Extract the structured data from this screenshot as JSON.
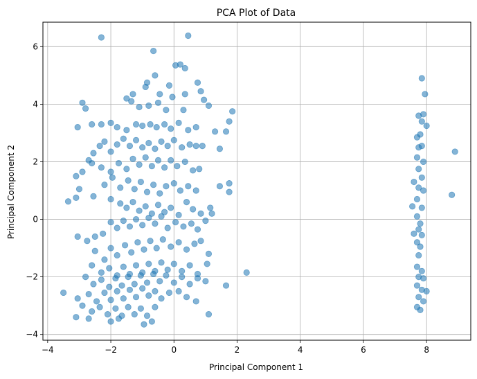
{
  "chart_data": {
    "type": "scatter",
    "title": "PCA Plot of Data",
    "xlabel": "Principal Component 1",
    "ylabel": "Principal Component 2",
    "xlim": [
      -4.15,
      9.4
    ],
    "ylim": [
      -4.2,
      6.85
    ],
    "xticks": [
      -4,
      -2,
      0,
      2,
      4,
      6,
      8
    ],
    "yticks": [
      -4,
      -2,
      0,
      2,
      4,
      6
    ],
    "grid": true,
    "point_color": "#1f77b4",
    "point_alpha": 0.55,
    "series": [
      {
        "values": [
          [
            -2.3,
            6.32
          ],
          [
            0.45,
            6.38
          ],
          [
            -0.65,
            5.85
          ],
          [
            0.05,
            5.35
          ],
          [
            0.2,
            5.38
          ],
          [
            0.35,
            5.25
          ],
          [
            -0.6,
            5.0
          ],
          [
            -0.85,
            4.75
          ],
          [
            -0.9,
            4.6
          ],
          [
            -0.15,
            4.65
          ],
          [
            0.75,
            4.75
          ],
          [
            -1.3,
            4.35
          ],
          [
            -0.45,
            4.35
          ],
          [
            -0.05,
            4.25
          ],
          [
            0.35,
            4.35
          ],
          [
            0.85,
            4.45
          ],
          [
            0.95,
            4.15
          ],
          [
            -2.9,
            4.05
          ],
          [
            -2.8,
            3.85
          ],
          [
            -1.5,
            4.2
          ],
          [
            -1.35,
            4.1
          ],
          [
            -1.1,
            3.9
          ],
          [
            -0.8,
            3.95
          ],
          [
            -0.5,
            4.05
          ],
          [
            -0.25,
            3.8
          ],
          [
            0.3,
            3.8
          ],
          [
            1.1,
            3.95
          ],
          [
            1.85,
            3.75
          ],
          [
            1.75,
            3.4
          ],
          [
            1.65,
            3.05
          ],
          [
            1.3,
            3.05
          ],
          [
            -3.05,
            3.2
          ],
          [
            -2.6,
            3.3
          ],
          [
            -2.3,
            3.3
          ],
          [
            -2.0,
            3.35
          ],
          [
            -1.8,
            3.2
          ],
          [
            -1.5,
            3.1
          ],
          [
            -1.2,
            3.3
          ],
          [
            -1.0,
            3.25
          ],
          [
            -0.75,
            3.3
          ],
          [
            -0.55,
            3.2
          ],
          [
            -0.3,
            3.3
          ],
          [
            -0.1,
            3.15
          ],
          [
            0.15,
            3.35
          ],
          [
            0.45,
            3.1
          ],
          [
            0.7,
            3.2
          ],
          [
            -3.1,
            1.5
          ],
          [
            -2.9,
            1.65
          ],
          [
            -2.7,
            2.05
          ],
          [
            -2.55,
            2.3
          ],
          [
            -2.35,
            2.55
          ],
          [
            -2.2,
            2.7
          ],
          [
            -2.0,
            2.35
          ],
          [
            -1.8,
            2.6
          ],
          [
            -1.6,
            2.8
          ],
          [
            -1.4,
            2.55
          ],
          [
            -1.2,
            2.75
          ],
          [
            -1.0,
            2.5
          ],
          [
            -0.8,
            2.65
          ],
          [
            -0.6,
            2.45
          ],
          [
            -0.4,
            2.7
          ],
          [
            -0.2,
            2.55
          ],
          [
            0.0,
            2.75
          ],
          [
            0.25,
            2.5
          ],
          [
            0.5,
            2.6
          ],
          [
            0.7,
            2.55
          ],
          [
            0.9,
            2.55
          ],
          [
            1.45,
            2.45
          ],
          [
            -2.6,
            1.95
          ],
          [
            -2.3,
            1.8
          ],
          [
            -2.0,
            1.65
          ],
          [
            -1.75,
            1.95
          ],
          [
            -1.5,
            1.75
          ],
          [
            -1.3,
            2.1
          ],
          [
            -1.1,
            1.9
          ],
          [
            -0.9,
            2.15
          ],
          [
            -0.7,
            1.85
          ],
          [
            -0.5,
            2.05
          ],
          [
            -0.3,
            1.8
          ],
          [
            -0.1,
            2.05
          ],
          [
            0.1,
            1.85
          ],
          [
            0.35,
            2.0
          ],
          [
            0.6,
            1.7
          ],
          [
            0.8,
            1.75
          ],
          [
            -3.0,
            1.05
          ],
          [
            -2.55,
            0.8
          ],
          [
            -2.2,
            1.2
          ],
          [
            -1.95,
            1.45
          ],
          [
            -1.7,
            1.1
          ],
          [
            -1.45,
            1.35
          ],
          [
            -1.25,
            1.05
          ],
          [
            -1.05,
            1.3
          ],
          [
            -0.85,
            0.95
          ],
          [
            -0.65,
            1.2
          ],
          [
            -0.45,
            0.9
          ],
          [
            -0.25,
            1.15
          ],
          [
            0.0,
            1.25
          ],
          [
            0.2,
            1.0
          ],
          [
            0.45,
            1.15
          ],
          [
            0.7,
            1.0
          ],
          [
            1.45,
            1.15
          ],
          [
            1.75,
            1.25
          ],
          [
            1.75,
            0.95
          ],
          [
            -3.35,
            0.62
          ],
          [
            -3.1,
            0.75
          ],
          [
            -2.0,
            0.7
          ],
          [
            -1.7,
            0.55
          ],
          [
            -1.5,
            0.4
          ],
          [
            -1.3,
            0.6
          ],
          [
            -1.1,
            0.3
          ],
          [
            -0.9,
            0.45
          ],
          [
            -0.7,
            0.2
          ],
          [
            -0.5,
            0.5
          ],
          [
            -0.3,
            0.25
          ],
          [
            -0.1,
            0.4
          ],
          [
            0.15,
            0.15
          ],
          [
            0.4,
            0.6
          ],
          [
            0.6,
            0.35
          ],
          [
            0.85,
            0.2
          ],
          [
            1.15,
            0.4
          ],
          [
            -3.05,
            -0.6
          ],
          [
            -2.75,
            -0.75
          ],
          [
            -2.5,
            -0.6
          ],
          [
            -2.25,
            -0.5
          ],
          [
            -2.0,
            -0.1
          ],
          [
            -1.8,
            -0.3
          ],
          [
            -1.6,
            -0.05
          ],
          [
            -1.4,
            -0.25
          ],
          [
            -1.2,
            0.0
          ],
          [
            -1.0,
            -0.2
          ],
          [
            -0.8,
            0.05
          ],
          [
            -0.6,
            -0.15
          ],
          [
            -0.4,
            0.1
          ],
          [
            -0.2,
            -0.3
          ],
          [
            0.05,
            -0.1
          ],
          [
            0.3,
            -0.25
          ],
          [
            0.55,
            -0.15
          ],
          [
            0.75,
            -0.35
          ],
          [
            1.0,
            -0.05
          ],
          [
            1.2,
            0.2
          ],
          [
            -2.5,
            -1.1
          ],
          [
            -2.2,
            -1.4
          ],
          [
            -2.0,
            -1.0
          ],
          [
            -1.8,
            -1.25
          ],
          [
            -1.55,
            -0.9
          ],
          [
            -1.35,
            -1.15
          ],
          [
            -1.15,
            -0.8
          ],
          [
            -0.95,
            -1.05
          ],
          [
            -0.75,
            -0.75
          ],
          [
            -0.55,
            -1.0
          ],
          [
            -0.35,
            -0.7
          ],
          [
            -0.1,
            -0.95
          ],
          [
            0.15,
            -0.8
          ],
          [
            0.4,
            -1.05
          ],
          [
            0.65,
            -0.85
          ],
          [
            0.85,
            -0.75
          ],
          [
            1.1,
            -1.2
          ],
          [
            -2.6,
            -1.6
          ],
          [
            -2.3,
            -1.85
          ],
          [
            -2.05,
            -1.7
          ],
          [
            -1.8,
            -1.95
          ],
          [
            -1.6,
            -1.65
          ],
          [
            -1.4,
            -1.9
          ],
          [
            -1.2,
            -1.6
          ],
          [
            -1.0,
            -1.85
          ],
          [
            -0.8,
            -1.55
          ],
          [
            -0.6,
            -1.8
          ],
          [
            -0.4,
            -1.5
          ],
          [
            -0.2,
            -1.75
          ],
          [
            0.0,
            -1.55
          ],
          [
            0.25,
            -1.8
          ],
          [
            0.5,
            -1.6
          ],
          [
            0.75,
            -1.9
          ],
          [
            1.05,
            -1.55
          ],
          [
            -2.8,
            -2.0
          ],
          [
            -2.55,
            -2.25
          ],
          [
            -2.3,
            -2.1
          ],
          [
            -2.05,
            -2.35
          ],
          [
            -1.85,
            -2.05
          ],
          [
            -1.65,
            -2.3
          ],
          [
            -1.45,
            -2.0
          ],
          [
            -1.25,
            -2.25
          ],
          [
            -1.05,
            -1.95
          ],
          [
            -0.85,
            -2.2
          ],
          [
            -0.65,
            -1.9
          ],
          [
            -0.45,
            -2.15
          ],
          [
            -0.25,
            -1.95
          ],
          [
            0.0,
            -2.2
          ],
          [
            0.25,
            -2.0
          ],
          [
            0.5,
            -2.25
          ],
          [
            0.75,
            -2.05
          ],
          [
            1.0,
            -2.15
          ],
          [
            1.65,
            -2.3
          ],
          [
            2.3,
            -1.85
          ],
          [
            -3.5,
            -2.55
          ],
          [
            -3.05,
            -2.75
          ],
          [
            -2.7,
            -2.6
          ],
          [
            -2.45,
            -2.85
          ],
          [
            -2.2,
            -2.55
          ],
          [
            -2.0,
            -2.8
          ],
          [
            -1.8,
            -2.5
          ],
          [
            -1.6,
            -2.75
          ],
          [
            -1.4,
            -2.45
          ],
          [
            -1.2,
            -2.7
          ],
          [
            -1.0,
            -2.4
          ],
          [
            -0.8,
            -2.65
          ],
          [
            -0.6,
            -2.5
          ],
          [
            -0.4,
            -2.75
          ],
          [
            -0.15,
            -2.55
          ],
          [
            0.15,
            -2.5
          ],
          [
            0.4,
            -2.7
          ],
          [
            0.7,
            -2.85
          ],
          [
            -2.9,
            -3.0
          ],
          [
            -2.6,
            -3.2
          ],
          [
            -2.35,
            -3.05
          ],
          [
            -2.1,
            -3.3
          ],
          [
            -1.85,
            -3.1
          ],
          [
            -1.65,
            -3.35
          ],
          [
            -1.45,
            -3.05
          ],
          [
            -1.25,
            -3.3
          ],
          [
            -1.05,
            -3.1
          ],
          [
            -0.85,
            -3.35
          ],
          [
            -0.6,
            -3.05
          ],
          [
            -3.1,
            -3.4
          ],
          [
            -2.7,
            -3.45
          ],
          [
            -2.0,
            -3.55
          ],
          [
            -1.75,
            -3.45
          ],
          [
            -0.95,
            -3.65
          ],
          [
            -0.7,
            -3.55
          ],
          [
            1.1,
            -3.3
          ],
          [
            7.85,
            4.9
          ],
          [
            7.95,
            4.35
          ],
          [
            7.75,
            3.6
          ],
          [
            7.9,
            3.65
          ],
          [
            7.85,
            3.4
          ],
          [
            8.0,
            3.25
          ],
          [
            7.7,
            2.85
          ],
          [
            7.8,
            2.95
          ],
          [
            7.75,
            2.5
          ],
          [
            7.85,
            2.55
          ],
          [
            7.7,
            2.15
          ],
          [
            7.9,
            2.0
          ],
          [
            7.75,
            1.75
          ],
          [
            7.6,
            1.3
          ],
          [
            7.85,
            1.45
          ],
          [
            7.75,
            1.1
          ],
          [
            7.9,
            1.0
          ],
          [
            7.7,
            0.7
          ],
          [
            7.85,
            0.4
          ],
          [
            7.55,
            0.45
          ],
          [
            7.7,
            0.1
          ],
          [
            7.8,
            -0.15
          ],
          [
            7.75,
            -0.35
          ],
          [
            7.85,
            -0.55
          ],
          [
            7.6,
            -0.5
          ],
          [
            7.7,
            -0.8
          ],
          [
            7.8,
            -0.95
          ],
          [
            7.75,
            -1.25
          ],
          [
            7.7,
            -1.65
          ],
          [
            7.85,
            -1.8
          ],
          [
            7.75,
            -2.0
          ],
          [
            7.9,
            -2.05
          ],
          [
            7.7,
            -2.3
          ],
          [
            7.85,
            -2.45
          ],
          [
            8.0,
            -2.5
          ],
          [
            7.75,
            -2.7
          ],
          [
            7.9,
            -2.85
          ],
          [
            7.7,
            -3.05
          ],
          [
            7.8,
            -3.15
          ],
          [
            8.9,
            2.35
          ],
          [
            8.8,
            0.85
          ]
        ]
      }
    ]
  }
}
